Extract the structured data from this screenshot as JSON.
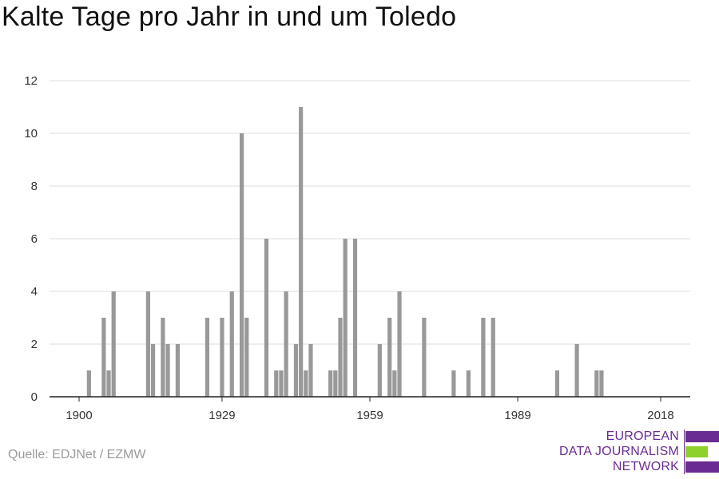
{
  "title": "Kalte Tage pro Jahr in und um Toledo",
  "source": "Quelle: EDJNet / EZMW",
  "logo": {
    "lines": [
      "EUROPEAN",
      "DATA JOURNALISM",
      "NETWORK"
    ],
    "colors": {
      "purple": "#6a2c91",
      "green": "#8fd12c"
    }
  },
  "colors": {
    "bar": "#999999",
    "grid": "#dddddd",
    "axis": "#222222"
  },
  "chart_data": {
    "type": "bar",
    "title": "Kalte Tage pro Jahr in und um Toledo",
    "xlabel": "",
    "ylabel": "",
    "xlim": [
      1894,
      2024
    ],
    "ylim": [
      0,
      12
    ],
    "x_ticks": [
      1900,
      1929,
      1959,
      1989,
      2018
    ],
    "y_ticks": [
      0,
      2,
      4,
      6,
      8,
      10,
      12
    ],
    "grid": true,
    "x": [
      1902,
      1905,
      1906,
      1907,
      1914,
      1915,
      1917,
      1918,
      1920,
      1926,
      1929,
      1931,
      1933,
      1934,
      1938,
      1940,
      1941,
      1942,
      1944,
      1945,
      1946,
      1947,
      1951,
      1952,
      1953,
      1954,
      1956,
      1961,
      1963,
      1964,
      1965,
      1970,
      1976,
      1979,
      1982,
      1984,
      1997,
      2001,
      2005,
      2006
    ],
    "values": [
      1,
      3,
      1,
      4,
      4,
      2,
      3,
      2,
      2,
      3,
      3,
      4,
      10,
      3,
      6,
      1,
      1,
      4,
      2,
      11,
      1,
      2,
      1,
      1,
      3,
      6,
      6,
      2,
      3,
      1,
      4,
      3,
      1,
      1,
      3,
      3,
      1,
      2,
      1,
      1
    ]
  }
}
